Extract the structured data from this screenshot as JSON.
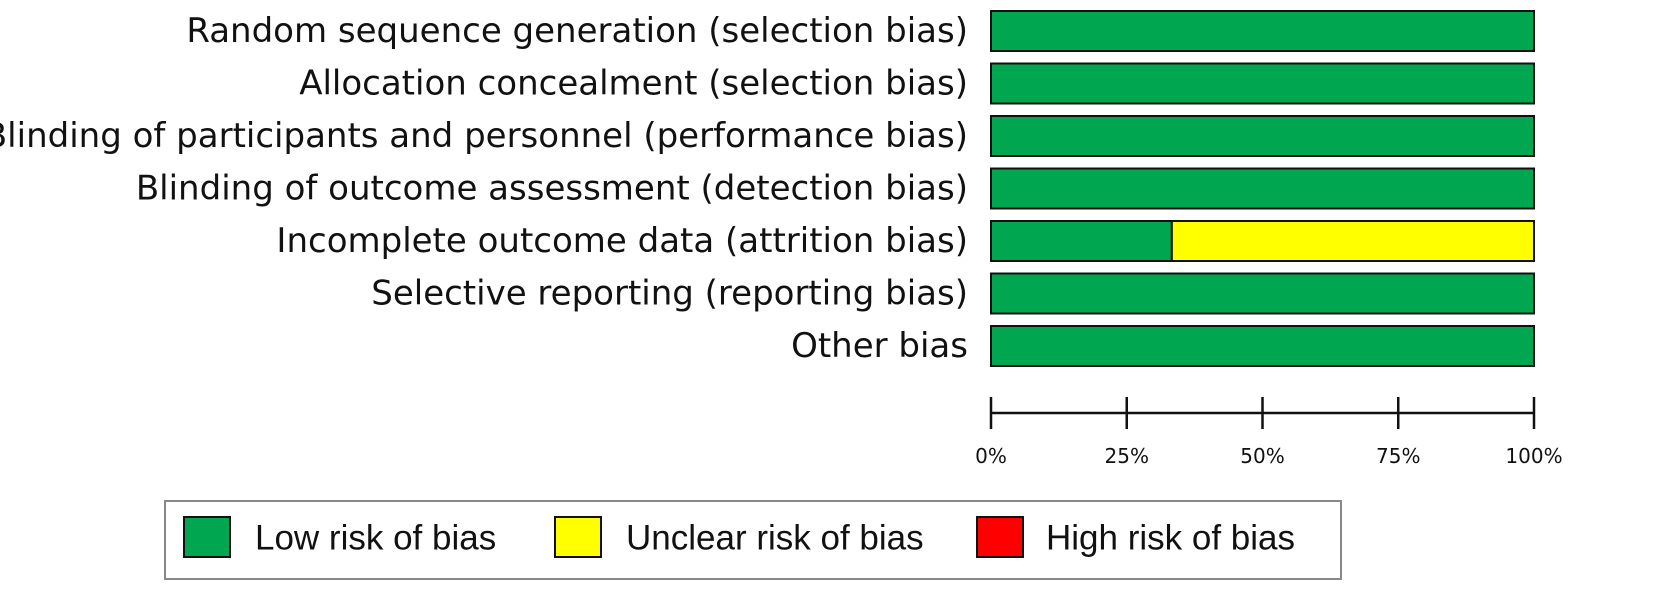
{
  "chart_data": {
    "type": "bar",
    "orientation": "horizontal",
    "stacked": true,
    "categories": [
      "Random sequence generation (selection bias)",
      "Allocation concealment (selection bias)",
      "Blinding of participants and personnel (performance bias)",
      "Blinding of outcome assessment (detection bias)",
      "Incomplete outcome data (attrition bias)",
      "Selective reporting (reporting bias)",
      "Other bias"
    ],
    "series": [
      {
        "name": "Low risk of bias",
        "color": "#00a650",
        "values": [
          100,
          100,
          100,
          100,
          33.3,
          100,
          100
        ]
      },
      {
        "name": "Unclear risk of bias",
        "color": "#ffff00",
        "values": [
          0,
          0,
          0,
          0,
          66.7,
          0,
          0
        ]
      },
      {
        "name": "High risk of bias",
        "color": "#ff0000",
        "values": [
          0,
          0,
          0,
          0,
          0,
          0,
          0
        ]
      }
    ],
    "xlim": [
      0,
      100
    ],
    "xticks": [
      0,
      25,
      50,
      75,
      100
    ],
    "xtick_labels": [
      "0%",
      "25%",
      "50%",
      "75%",
      "100%"
    ],
    "grid": false,
    "legend_position": "bottom"
  }
}
